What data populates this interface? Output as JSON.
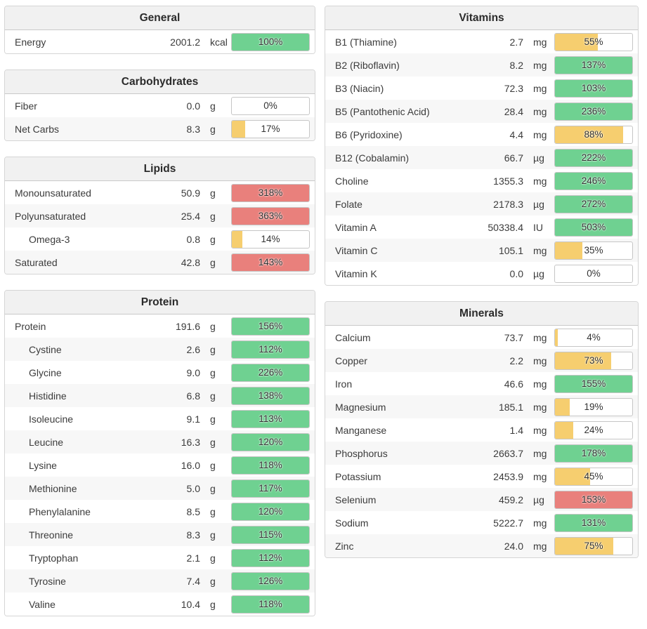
{
  "colors": {
    "green": "#6fd191",
    "amber": "#f6ce6f",
    "red": "#e9807c",
    "none": "transparent"
  },
  "columns": {
    "left": [
      {
        "title": "General",
        "rows": [
          {
            "label": "Energy",
            "value": "2001.2",
            "unit": "kcal",
            "percent": "100%",
            "bar_color": "green",
            "bar_fill": 100,
            "indent": false
          }
        ]
      },
      {
        "title": "Carbohydrates",
        "rows": [
          {
            "label": "Fiber",
            "value": "0.0",
            "unit": "g",
            "percent": "0%",
            "bar_color": "none",
            "bar_fill": 0,
            "indent": false
          },
          {
            "label": "Net Carbs",
            "value": "8.3",
            "unit": "g",
            "percent": "17%",
            "bar_color": "amber",
            "bar_fill": 17,
            "indent": false
          }
        ]
      },
      {
        "title": "Lipids",
        "rows": [
          {
            "label": "Monounsaturated",
            "value": "50.9",
            "unit": "g",
            "percent": "318%",
            "bar_color": "red",
            "bar_fill": 100,
            "indent": false
          },
          {
            "label": "Polyunsaturated",
            "value": "25.4",
            "unit": "g",
            "percent": "363%",
            "bar_color": "red",
            "bar_fill": 100,
            "indent": false
          },
          {
            "label": "Omega-3",
            "value": "0.8",
            "unit": "g",
            "percent": "14%",
            "bar_color": "amber",
            "bar_fill": 14,
            "indent": true
          },
          {
            "label": "Saturated",
            "value": "42.8",
            "unit": "g",
            "percent": "143%",
            "bar_color": "red",
            "bar_fill": 100,
            "indent": false
          }
        ]
      },
      {
        "title": "Protein",
        "rows": [
          {
            "label": "Protein",
            "value": "191.6",
            "unit": "g",
            "percent": "156%",
            "bar_color": "green",
            "bar_fill": 100,
            "indent": false
          },
          {
            "label": "Cystine",
            "value": "2.6",
            "unit": "g",
            "percent": "112%",
            "bar_color": "green",
            "bar_fill": 100,
            "indent": true
          },
          {
            "label": "Glycine",
            "value": "9.0",
            "unit": "g",
            "percent": "226%",
            "bar_color": "green",
            "bar_fill": 100,
            "indent": true
          },
          {
            "label": "Histidine",
            "value": "6.8",
            "unit": "g",
            "percent": "138%",
            "bar_color": "green",
            "bar_fill": 100,
            "indent": true
          },
          {
            "label": "Isoleucine",
            "value": "9.1",
            "unit": "g",
            "percent": "113%",
            "bar_color": "green",
            "bar_fill": 100,
            "indent": true
          },
          {
            "label": "Leucine",
            "value": "16.3",
            "unit": "g",
            "percent": "120%",
            "bar_color": "green",
            "bar_fill": 100,
            "indent": true
          },
          {
            "label": "Lysine",
            "value": "16.0",
            "unit": "g",
            "percent": "118%",
            "bar_color": "green",
            "bar_fill": 100,
            "indent": true
          },
          {
            "label": "Methionine",
            "value": "5.0",
            "unit": "g",
            "percent": "117%",
            "bar_color": "green",
            "bar_fill": 100,
            "indent": true
          },
          {
            "label": "Phenylalanine",
            "value": "8.5",
            "unit": "g",
            "percent": "120%",
            "bar_color": "green",
            "bar_fill": 100,
            "indent": true
          },
          {
            "label": "Threonine",
            "value": "8.3",
            "unit": "g",
            "percent": "115%",
            "bar_color": "green",
            "bar_fill": 100,
            "indent": true
          },
          {
            "label": "Tryptophan",
            "value": "2.1",
            "unit": "g",
            "percent": "112%",
            "bar_color": "green",
            "bar_fill": 100,
            "indent": true
          },
          {
            "label": "Tyrosine",
            "value": "7.4",
            "unit": "g",
            "percent": "126%",
            "bar_color": "green",
            "bar_fill": 100,
            "indent": true
          },
          {
            "label": "Valine",
            "value": "10.4",
            "unit": "g",
            "percent": "118%",
            "bar_color": "green",
            "bar_fill": 100,
            "indent": true
          }
        ]
      }
    ],
    "right": [
      {
        "title": "Vitamins",
        "rows": [
          {
            "label": "B1 (Thiamine)",
            "value": "2.7",
            "unit": "mg",
            "percent": "55%",
            "bar_color": "amber",
            "bar_fill": 55,
            "indent": false
          },
          {
            "label": "B2 (Riboflavin)",
            "value": "8.2",
            "unit": "mg",
            "percent": "137%",
            "bar_color": "green",
            "bar_fill": 100,
            "indent": false
          },
          {
            "label": "B3 (Niacin)",
            "value": "72.3",
            "unit": "mg",
            "percent": "103%",
            "bar_color": "green",
            "bar_fill": 100,
            "indent": false
          },
          {
            "label": "B5 (Pantothenic Acid)",
            "value": "28.4",
            "unit": "mg",
            "percent": "236%",
            "bar_color": "green",
            "bar_fill": 100,
            "indent": false
          },
          {
            "label": "B6 (Pyridoxine)",
            "value": "4.4",
            "unit": "mg",
            "percent": "88%",
            "bar_color": "amber",
            "bar_fill": 88,
            "indent": false
          },
          {
            "label": "B12 (Cobalamin)",
            "value": "66.7",
            "unit": "µg",
            "percent": "222%",
            "bar_color": "green",
            "bar_fill": 100,
            "indent": false
          },
          {
            "label": "Choline",
            "value": "1355.3",
            "unit": "mg",
            "percent": "246%",
            "bar_color": "green",
            "bar_fill": 100,
            "indent": false
          },
          {
            "label": "Folate",
            "value": "2178.3",
            "unit": "µg",
            "percent": "272%",
            "bar_color": "green",
            "bar_fill": 100,
            "indent": false
          },
          {
            "label": "Vitamin A",
            "value": "50338.4",
            "unit": "IU",
            "percent": "503%",
            "bar_color": "green",
            "bar_fill": 100,
            "indent": false
          },
          {
            "label": "Vitamin C",
            "value": "105.1",
            "unit": "mg",
            "percent": "35%",
            "bar_color": "amber",
            "bar_fill": 35,
            "indent": false
          },
          {
            "label": "Vitamin K",
            "value": "0.0",
            "unit": "µg",
            "percent": "0%",
            "bar_color": "none",
            "bar_fill": 0,
            "indent": false
          }
        ]
      },
      {
        "title": "Minerals",
        "rows": [
          {
            "label": "Calcium",
            "value": "73.7",
            "unit": "mg",
            "percent": "4%",
            "bar_color": "amber",
            "bar_fill": 4,
            "indent": false
          },
          {
            "label": "Copper",
            "value": "2.2",
            "unit": "mg",
            "percent": "73%",
            "bar_color": "amber",
            "bar_fill": 73,
            "indent": false
          },
          {
            "label": "Iron",
            "value": "46.6",
            "unit": "mg",
            "percent": "155%",
            "bar_color": "green",
            "bar_fill": 100,
            "indent": false
          },
          {
            "label": "Magnesium",
            "value": "185.1",
            "unit": "mg",
            "percent": "19%",
            "bar_color": "amber",
            "bar_fill": 19,
            "indent": false
          },
          {
            "label": "Manganese",
            "value": "1.4",
            "unit": "mg",
            "percent": "24%",
            "bar_color": "amber",
            "bar_fill": 24,
            "indent": false
          },
          {
            "label": "Phosphorus",
            "value": "2663.7",
            "unit": "mg",
            "percent": "178%",
            "bar_color": "green",
            "bar_fill": 100,
            "indent": false
          },
          {
            "label": "Potassium",
            "value": "2453.9",
            "unit": "mg",
            "percent": "45%",
            "bar_color": "amber",
            "bar_fill": 45,
            "indent": false
          },
          {
            "label": "Selenium",
            "value": "459.2",
            "unit": "µg",
            "percent": "153%",
            "bar_color": "red",
            "bar_fill": 100,
            "indent": false
          },
          {
            "label": "Sodium",
            "value": "5222.7",
            "unit": "mg",
            "percent": "131%",
            "bar_color": "green",
            "bar_fill": 100,
            "indent": false
          },
          {
            "label": "Zinc",
            "value": "24.0",
            "unit": "mg",
            "percent": "75%",
            "bar_color": "amber",
            "bar_fill": 75,
            "indent": false
          }
        ]
      }
    ]
  }
}
